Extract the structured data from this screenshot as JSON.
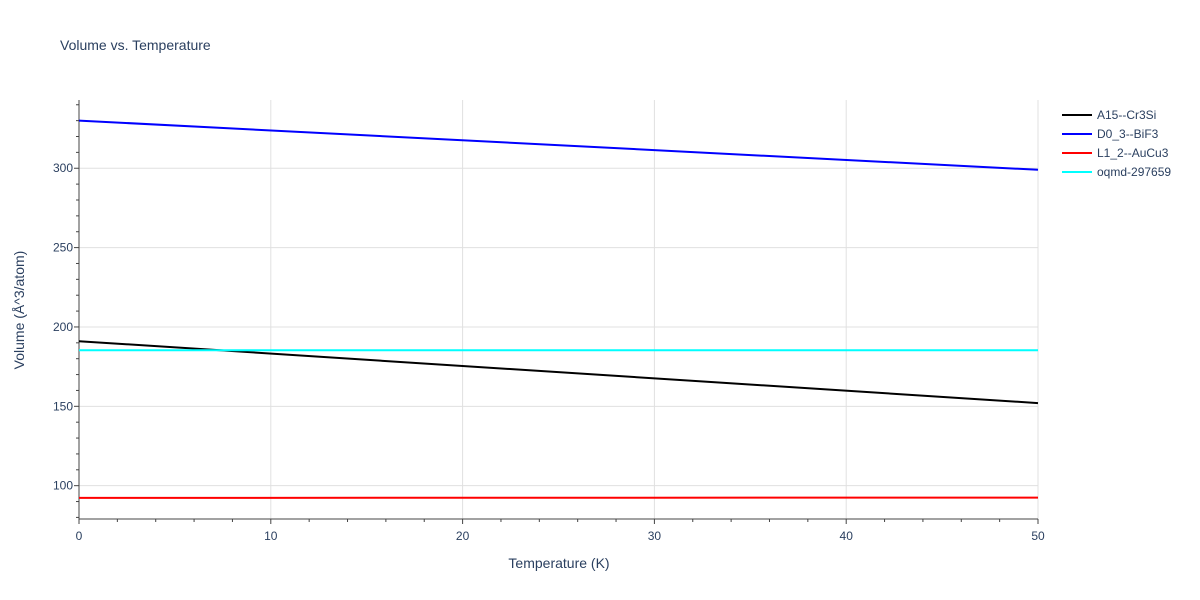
{
  "chart_data": {
    "type": "line",
    "title": "Volume vs. Temperature",
    "xlabel": "Temperature (K)",
    "ylabel": "Volume (Å^3/atom)",
    "xlim": [
      0,
      50
    ],
    "ylim": [
      79,
      343
    ],
    "x_ticks": [
      0,
      10,
      20,
      30,
      40,
      50
    ],
    "y_ticks": [
      100,
      150,
      200,
      250,
      300
    ],
    "grid": true,
    "legend_position": "right",
    "series": [
      {
        "name": "A15--Cr3Si",
        "color": "#000000",
        "x": [
          0,
          50
        ],
        "y": [
          191,
          152
        ]
      },
      {
        "name": "D0_3--BiF3",
        "color": "#0000ff",
        "x": [
          0,
          50
        ],
        "y": [
          330,
          299
        ]
      },
      {
        "name": "L1_2--AuCu3",
        "color": "#ff0000",
        "x": [
          0,
          50
        ],
        "y": [
          92.3,
          92.5
        ]
      },
      {
        "name": "oqmd-297659",
        "color": "#00ffff",
        "x": [
          0,
          50
        ],
        "y": [
          185.3,
          185.3
        ]
      }
    ]
  }
}
